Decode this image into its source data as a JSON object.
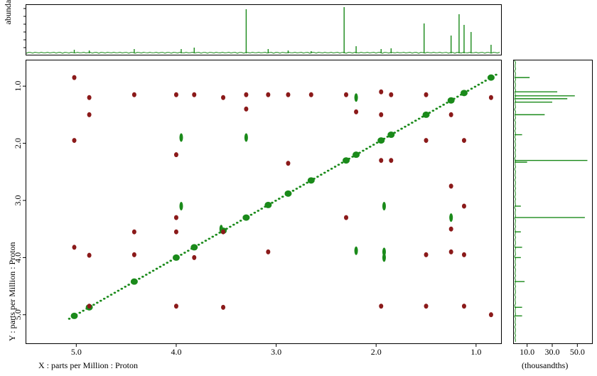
{
  "chart_data": {
    "type": "scatter",
    "xlabel": "X : parts per Million : Proton",
    "ylabel": "Y : parts per Million : Proton",
    "xlim": [
      5.5,
      0.75
    ],
    "ylim": [
      0.55,
      5.5
    ],
    "x_ticks": [
      "5.0",
      "4.0",
      "3.0",
      "2.0",
      "1.0"
    ],
    "y_ticks": [
      "1.0",
      "2.0",
      "3.0",
      "4.0",
      "5.0"
    ],
    "top_projection": {
      "ylabel": "abundance"
    },
    "right_projection": {
      "ticks": [
        "10.0",
        "30.0",
        "50.0"
      ],
      "unit": "(thousandths)"
    },
    "colors": {
      "diagonal": "#1a8a1a",
      "cross": "#8b1a1a",
      "projection": "#1a8a1a"
    },
    "diagonal_peaks": [
      [
        5.02,
        5.02
      ],
      [
        4.87,
        4.87
      ],
      [
        4.42,
        4.42
      ],
      [
        4.0,
        4.0
      ],
      [
        3.82,
        3.82
      ],
      [
        3.53,
        3.53
      ],
      [
        3.3,
        3.3
      ],
      [
        3.08,
        3.08
      ],
      [
        2.88,
        2.88
      ],
      [
        2.65,
        2.65
      ],
      [
        2.3,
        2.3
      ],
      [
        2.2,
        2.2
      ],
      [
        1.95,
        1.95
      ],
      [
        1.85,
        1.85
      ],
      [
        1.5,
        1.5
      ],
      [
        1.25,
        1.25
      ],
      [
        1.12,
        1.12
      ],
      [
        0.85,
        0.85
      ]
    ],
    "cross_peaks_green": [
      [
        3.95,
        1.9
      ],
      [
        3.3,
        1.9
      ],
      [
        2.2,
        1.2
      ],
      [
        1.92,
        3.1
      ],
      [
        1.92,
        3.9
      ],
      [
        3.55,
        3.5
      ],
      [
        1.25,
        3.3
      ],
      [
        2.2,
        3.88
      ],
      [
        3.95,
        3.1
      ],
      [
        1.92,
        4.0
      ]
    ],
    "cross_peaks_red": [
      [
        5.02,
        0.85
      ],
      [
        5.02,
        1.95
      ],
      [
        5.02,
        3.82
      ],
      [
        4.87,
        1.2
      ],
      [
        4.87,
        1.5
      ],
      [
        4.87,
        3.96
      ],
      [
        4.87,
        4.85
      ],
      [
        4.42,
        1.15
      ],
      [
        4.42,
        3.55
      ],
      [
        4.42,
        3.95
      ],
      [
        4.0,
        1.15
      ],
      [
        4.0,
        2.2
      ],
      [
        4.0,
        3.3
      ],
      [
        4.0,
        3.55
      ],
      [
        4.0,
        4.85
      ],
      [
        3.82,
        1.15
      ],
      [
        3.82,
        4.0
      ],
      [
        3.53,
        1.2
      ],
      [
        3.53,
        3.55
      ],
      [
        3.53,
        4.87
      ],
      [
        3.3,
        1.15
      ],
      [
        3.3,
        1.4
      ],
      [
        3.08,
        1.15
      ],
      [
        3.08,
        3.9
      ],
      [
        2.88,
        1.15
      ],
      [
        2.88,
        2.35
      ],
      [
        2.65,
        1.15
      ],
      [
        2.3,
        1.15
      ],
      [
        2.3,
        3.3
      ],
      [
        2.2,
        1.45
      ],
      [
        1.95,
        1.1
      ],
      [
        1.95,
        1.5
      ],
      [
        1.95,
        4.85
      ],
      [
        1.85,
        1.15
      ],
      [
        1.85,
        2.3
      ],
      [
        1.5,
        1.15
      ],
      [
        1.5,
        1.95
      ],
      [
        1.5,
        3.95
      ],
      [
        1.25,
        1.5
      ],
      [
        1.25,
        3.5
      ],
      [
        1.12,
        1.95
      ],
      [
        1.12,
        3.1
      ],
      [
        1.12,
        3.95
      ],
      [
        1.12,
        4.85
      ],
      [
        0.85,
        1.2
      ],
      [
        0.85,
        5.0
      ],
      [
        1.25,
        2.75
      ],
      [
        1.25,
        3.9
      ],
      [
        1.5,
        4.85
      ],
      [
        1.95,
        2.3
      ]
    ],
    "right_peaks": [
      [
        0.85,
        12
      ],
      [
        1.1,
        34
      ],
      [
        1.17,
        48
      ],
      [
        1.22,
        42
      ],
      [
        1.28,
        30
      ],
      [
        1.5,
        24
      ],
      [
        1.85,
        6
      ],
      [
        2.3,
        58
      ],
      [
        2.33,
        10
      ],
      [
        3.1,
        5
      ],
      [
        3.3,
        56
      ],
      [
        3.55,
        5
      ],
      [
        3.82,
        6
      ],
      [
        4.0,
        5
      ],
      [
        4.42,
        8
      ],
      [
        4.87,
        6
      ],
      [
        5.02,
        6
      ]
    ],
    "top_peaks": [
      [
        5.02,
        5
      ],
      [
        4.87,
        4
      ],
      [
        4.42,
        6
      ],
      [
        3.95,
        6
      ],
      [
        3.82,
        8
      ],
      [
        3.3,
        62
      ],
      [
        3.08,
        6
      ],
      [
        2.88,
        4
      ],
      [
        2.65,
        3
      ],
      [
        2.32,
        65
      ],
      [
        2.2,
        10
      ],
      [
        1.95,
        6
      ],
      [
        1.85,
        7
      ],
      [
        1.52,
        42
      ],
      [
        1.25,
        25
      ],
      [
        1.17,
        55
      ],
      [
        1.12,
        40
      ],
      [
        1.05,
        30
      ],
      [
        0.85,
        12
      ]
    ]
  }
}
